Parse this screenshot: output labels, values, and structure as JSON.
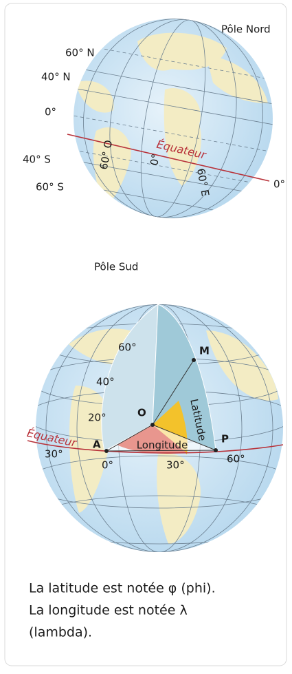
{
  "globe_top": {
    "pole_north": "Pôle Nord",
    "pole_south": "Pôle Sud",
    "latitudes": [
      "60° N",
      "40° N",
      "0°",
      "40° S",
      "60° S"
    ],
    "equator": "Équateur",
    "longitudes": [
      "60° O",
      "0°",
      "60° E"
    ],
    "right_label": "0°"
  },
  "globe_bottom": {
    "latitudes": [
      "60°",
      "40°",
      "20°"
    ],
    "equator": "Équateur",
    "points": [
      "M",
      "O",
      "A",
      "P"
    ],
    "latitude_label": "Latitude",
    "longitude_label": "Longitude",
    "longitudes": [
      "30°",
      "0°",
      "30°",
      "60°"
    ]
  },
  "caption": [
    "La latitude est notée φ (phi).",
    "La longitude est notée λ",
    "(lambda)."
  ]
}
